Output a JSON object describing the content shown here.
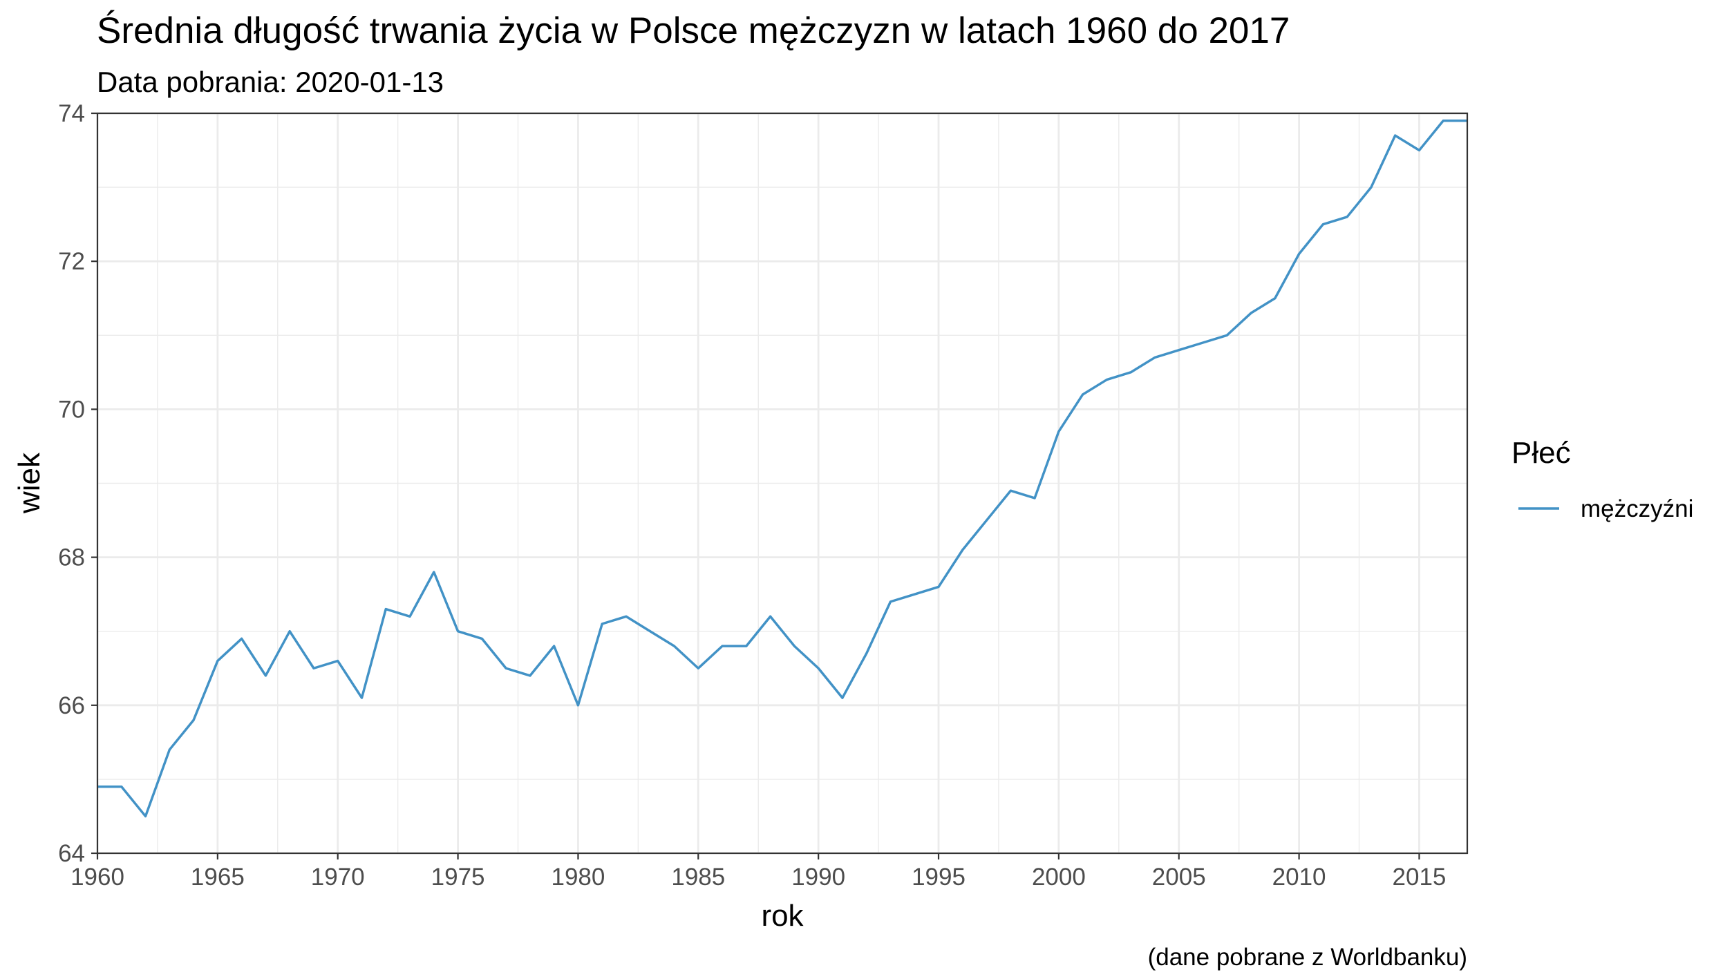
{
  "chart_data": {
    "type": "line",
    "title": "Średnia długość trwania życia w Polsce mężczyzn w latach 1960 do 2017",
    "subtitle": "Data pobrania: 2020-01-13",
    "xlabel": "rok",
    "ylabel": "wiek",
    "caption": "(dane pobrane z Worldbanku)",
    "legend_title": "Płeć",
    "legend_placement": "right",
    "xlim": [
      1960,
      2017
    ],
    "ylim": [
      64,
      74
    ],
    "x_ticks": [
      1960,
      1965,
      1970,
      1975,
      1980,
      1985,
      1990,
      1995,
      2000,
      2005,
      2010,
      2015
    ],
    "y_ticks": [
      64,
      66,
      68,
      70,
      72,
      74
    ],
    "grid": true,
    "series": [
      {
        "name": "mężczyźni",
        "color": "#4292c6",
        "x": [
          1960,
          1961,
          1962,
          1963,
          1964,
          1965,
          1966,
          1967,
          1968,
          1969,
          1970,
          1971,
          1972,
          1973,
          1974,
          1975,
          1976,
          1977,
          1978,
          1979,
          1980,
          1981,
          1982,
          1983,
          1984,
          1985,
          1986,
          1987,
          1988,
          1989,
          1990,
          1991,
          1992,
          1993,
          1994,
          1995,
          1996,
          1997,
          1998,
          1999,
          2000,
          2001,
          2002,
          2003,
          2004,
          2005,
          2006,
          2007,
          2008,
          2009,
          2010,
          2011,
          2012,
          2013,
          2014,
          2015,
          2016,
          2017
        ],
        "values": [
          64.9,
          64.9,
          64.5,
          65.4,
          65.8,
          66.6,
          66.9,
          66.4,
          67.0,
          66.5,
          66.6,
          66.1,
          67.3,
          67.2,
          67.8,
          67.0,
          66.9,
          66.5,
          66.4,
          66.8,
          66.0,
          67.1,
          67.2,
          67.0,
          66.8,
          66.5,
          66.8,
          66.8,
          67.2,
          66.8,
          66.5,
          66.1,
          66.7,
          67.4,
          67.5,
          67.6,
          68.1,
          68.5,
          68.9,
          68.8,
          69.7,
          70.2,
          70.4,
          70.5,
          70.7,
          70.8,
          70.9,
          71.0,
          71.3,
          71.5,
          72.1,
          72.5,
          72.6,
          73.0,
          73.7,
          73.5,
          73.9,
          73.9
        ]
      }
    ]
  }
}
